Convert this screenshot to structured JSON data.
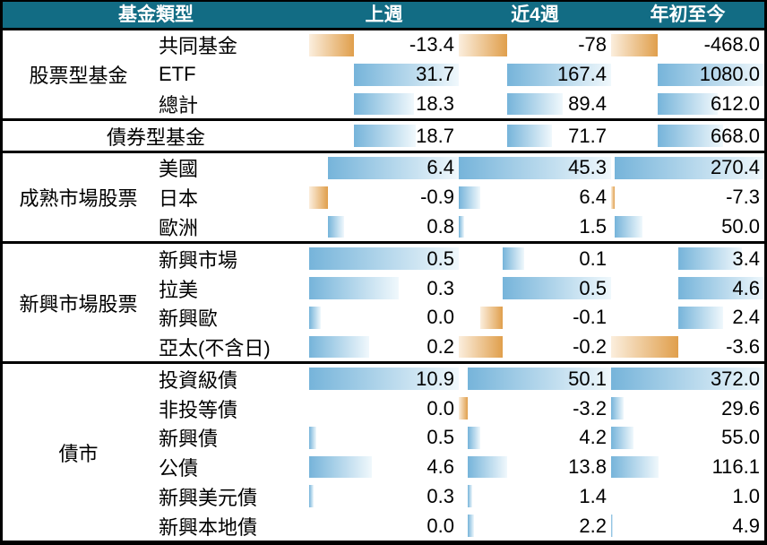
{
  "table": {
    "header": {
      "bg": "#126c84",
      "text_color": "#ffffff",
      "columns": [
        "基金類型",
        "上週",
        "近4週",
        "年初至今"
      ]
    },
    "bar_colors": {
      "positive_solid": "#76b4da",
      "positive_fade": "#f0f8fc",
      "negative_solid": "#e09f4c",
      "negative_fade": "#fbeedd"
    },
    "sections": [
      {
        "group": "股票型基金",
        "scale_group": "A",
        "merged": false,
        "rows": [
          {
            "label": "共同基金",
            "values": [
              "-13.4",
              "-78",
              "-468.0"
            ]
          },
          {
            "label": "ETF",
            "values": [
              "31.7",
              "167.4",
              "1080.0"
            ]
          },
          {
            "label": "總計",
            "values": [
              "18.3",
              "89.4",
              "612.0"
            ]
          }
        ]
      },
      {
        "group": "債券型基金",
        "scale_group": "A",
        "merged": true,
        "rows": [
          {
            "label": "",
            "values": [
              "18.7",
              "71.7",
              "668.0"
            ]
          }
        ]
      },
      {
        "group": "成熟市場股票",
        "scale_group": "B",
        "merged": false,
        "rows": [
          {
            "label": "美國",
            "values": [
              "6.4",
              "45.3",
              "270.4"
            ]
          },
          {
            "label": "日本",
            "values": [
              "-0.9",
              "6.4",
              "-7.3"
            ]
          },
          {
            "label": "歐洲",
            "values": [
              "0.8",
              "1.5",
              "50.0"
            ]
          }
        ]
      },
      {
        "group": "新興市場股票",
        "scale_group": "C",
        "merged": false,
        "rows": [
          {
            "label": "新興市場",
            "values": [
              "0.5",
              "0.1",
              "3.4"
            ]
          },
          {
            "label": "拉美",
            "values": [
              "0.3",
              "0.5",
              "4.6"
            ]
          },
          {
            "label": "新興歐",
            "values": [
              "0.0",
              "-0.1",
              "2.4"
            ],
            "bar_values": [
              0.04,
              -0.1,
              2.4
            ]
          },
          {
            "label": "亞太(不含日)",
            "values": [
              "0.2",
              "-0.2",
              "-3.6"
            ]
          }
        ]
      },
      {
        "group": "債市",
        "scale_group": "D",
        "merged": false,
        "rows": [
          {
            "label": "投資級債",
            "values": [
              "10.9",
              "50.1",
              "372.0"
            ]
          },
          {
            "label": "非投等債",
            "values": [
              "0.0",
              "-3.2",
              "29.6"
            ]
          },
          {
            "label": "新興債",
            "values": [
              "0.5",
              "4.2",
              "55.0"
            ]
          },
          {
            "label": "公債",
            "values": [
              "4.6",
              "13.8",
              "116.1"
            ]
          },
          {
            "label": "新興美元債",
            "values": [
              "0.3",
              "1.4",
              "1.0"
            ]
          },
          {
            "label": "新興本地債",
            "values": [
              "0.0",
              "2.2",
              "4.9"
            ]
          }
        ]
      }
    ]
  },
  "chart_data": {
    "type": "table",
    "columns": [
      "基金類型",
      "上週",
      "近4週",
      "年初至今"
    ],
    "bar_style": "excel-data-bars, blue gradient = positive, orange gradient = negative, scaled per section per column",
    "rows": [
      {
        "group": "股票型基金",
        "label": "共同基金",
        "values": [
          -13.4,
          -78,
          -468.0
        ]
      },
      {
        "group": "股票型基金",
        "label": "ETF",
        "values": [
          31.7,
          167.4,
          1080.0
        ]
      },
      {
        "group": "股票型基金",
        "label": "總計",
        "values": [
          18.3,
          89.4,
          612.0
        ]
      },
      {
        "group": "債券型基金",
        "label": "債券型基金",
        "values": [
          18.7,
          71.7,
          668.0
        ]
      },
      {
        "group": "成熟市場股票",
        "label": "美國",
        "values": [
          6.4,
          45.3,
          270.4
        ]
      },
      {
        "group": "成熟市場股票",
        "label": "日本",
        "values": [
          -0.9,
          6.4,
          -7.3
        ]
      },
      {
        "group": "成熟市場股票",
        "label": "歐洲",
        "values": [
          0.8,
          1.5,
          50.0
        ]
      },
      {
        "group": "新興市場股票",
        "label": "新興市場",
        "values": [
          0.5,
          0.1,
          3.4
        ]
      },
      {
        "group": "新興市場股票",
        "label": "拉美",
        "values": [
          0.3,
          0.5,
          4.6
        ]
      },
      {
        "group": "新興市場股票",
        "label": "新興歐",
        "values": [
          0.0,
          -0.1,
          2.4
        ]
      },
      {
        "group": "新興市場股票",
        "label": "亞太(不含日)",
        "values": [
          0.2,
          -0.2,
          -3.6
        ]
      },
      {
        "group": "債市",
        "label": "投資級債",
        "values": [
          10.9,
          50.1,
          372.0
        ]
      },
      {
        "group": "債市",
        "label": "非投等債",
        "values": [
          0.0,
          -3.2,
          29.6
        ]
      },
      {
        "group": "債市",
        "label": "新興債",
        "values": [
          0.5,
          4.2,
          55.0
        ]
      },
      {
        "group": "債市",
        "label": "公債",
        "values": [
          4.6,
          13.8,
          116.1
        ]
      },
      {
        "group": "債市",
        "label": "新興美元債",
        "values": [
          0.3,
          1.4,
          1.0
        ]
      },
      {
        "group": "債市",
        "label": "新興本地債",
        "values": [
          0.0,
          2.2,
          4.9
        ]
      }
    ]
  }
}
